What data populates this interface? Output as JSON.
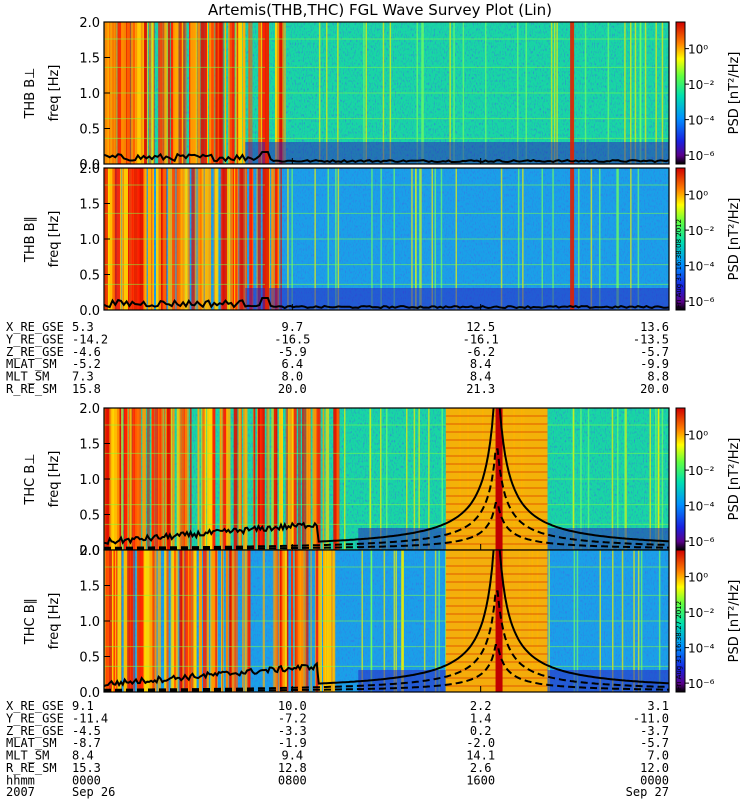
{
  "title": "Artemis(THB,THC) FGL Wave Survey Plot (Lin)",
  "chart_data": {
    "type": "heatmap",
    "title": "Artemis(THB,THC) FGL Wave Survey Plot (Lin)",
    "panels": [
      {
        "id": "thb-bperp",
        "label": "THB B⊥",
        "ylabel": "freq [Hz]",
        "ylim": [
          0,
          2.0
        ],
        "yticks": [
          "0.0",
          "0.5",
          "1.0",
          "1.5",
          "2.0"
        ],
        "colorbar_label": "PSD [nT²/Hz]",
        "colorbar_ticks": [
          "10⁰",
          "10⁻²",
          "10⁻⁴",
          "10⁻⁶"
        ],
        "stamp": ""
      },
      {
        "id": "thb-bpar",
        "label": "THB B∥",
        "ylabel": "freq [Hz]",
        "ylim": [
          0,
          2.0
        ],
        "yticks": [
          "0.0",
          "0.5",
          "1.0",
          "1.5",
          "2.0"
        ],
        "colorbar_label": "PSD [nT²/Hz]",
        "colorbar_ticks": [
          "10⁰",
          "10⁻²",
          "10⁻⁴",
          "10⁻⁶"
        ],
        "stamp": "Fri Aug 31 16:38:08 2012"
      },
      {
        "id": "thc-bperp",
        "label": "THC B⊥",
        "ylabel": "freq [Hz]",
        "ylim": [
          0,
          2.0
        ],
        "yticks": [
          "0.0",
          "0.5",
          "1.0",
          "1.5",
          "2.0"
        ],
        "colorbar_label": "PSD [nT²/Hz]",
        "colorbar_ticks": [
          "10⁰",
          "10⁻²",
          "10⁻⁴",
          "10⁻⁶"
        ],
        "stamp": ""
      },
      {
        "id": "thc-bpar",
        "label": "THC B∥",
        "ylabel": "freq [Hz]",
        "ylim": [
          0,
          2.0
        ],
        "yticks": [
          "0.0",
          "0.5",
          "1.0",
          "1.5",
          "2.0"
        ],
        "colorbar_label": "PSD [nT²/Hz]",
        "colorbar_ticks": [
          "10⁰",
          "10⁻²",
          "10⁻⁴",
          "10⁻⁶"
        ],
        "stamp": "Fri Aug 31 16:38:27 2012"
      }
    ],
    "colorbar_range": [
      -6.5,
      1.5
    ],
    "ephemeris_thb": [
      {
        "label": "X_RE_GSE",
        "values": [
          "5.3",
          "9.7",
          "12.5",
          "13.6"
        ]
      },
      {
        "label": "Y_RE_GSE",
        "values": [
          "-14.2",
          "-16.5",
          "-16.1",
          "-13.5"
        ]
      },
      {
        "label": "Z_RE_GSE",
        "values": [
          "-4.6",
          "-5.9",
          "-6.2",
          "-5.7"
        ]
      },
      {
        "label": "MLAT_SM",
        "values": [
          "-5.2",
          "6.4",
          "8.4",
          "-9.9"
        ]
      },
      {
        "label": "MLT_SM",
        "values": [
          "7.3",
          "8.0",
          "8.4",
          "8.8"
        ]
      },
      {
        "label": "R_RE_SM",
        "values": [
          "15.8",
          "20.0",
          "21.3",
          "20.0"
        ]
      }
    ],
    "ephemeris_thc": [
      {
        "label": "X_RE_GSE",
        "values": [
          "9.1",
          "10.0",
          "2.2",
          "3.1"
        ]
      },
      {
        "label": "Y_RE_GSE",
        "values": [
          "-11.4",
          "-7.2",
          "1.4",
          "-11.0"
        ]
      },
      {
        "label": "Z_RE_GSE",
        "values": [
          "-4.5",
          "-3.3",
          "0.2",
          "-3.7"
        ]
      },
      {
        "label": "MLAT_SM",
        "values": [
          "-8.7",
          "-1.9",
          "-2.0",
          "-5.7"
        ]
      },
      {
        "label": "MLT_SM",
        "values": [
          "8.4",
          "9.4",
          "14.1",
          "7.0"
        ]
      },
      {
        "label": "R_RE_SM",
        "values": [
          "15.3",
          "12.8",
          "2.6",
          "12.0"
        ]
      },
      {
        "label": "hhmm",
        "values": [
          "0000",
          "0800",
          "1600",
          "0000"
        ]
      }
    ],
    "time_axis": {
      "year": "2007",
      "start_date": "Sep 26",
      "end_date": "Sep 27"
    }
  },
  "colors": {
    "frame": "#000000",
    "curve": "#000000",
    "background": "#ffffff"
  }
}
